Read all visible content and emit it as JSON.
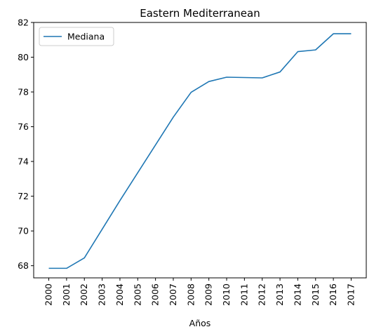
{
  "chart_data": {
    "type": "line",
    "title": "Eastern Mediterranean",
    "xlabel": "Años",
    "ylabel": "",
    "x": [
      "2000",
      "2001",
      "2002",
      "2003",
      "2004",
      "2005",
      "2006",
      "2007",
      "2008",
      "2009",
      "2010",
      "2011",
      "2012",
      "2013",
      "2014",
      "2015",
      "2016",
      "2017"
    ],
    "series": [
      {
        "name": "Mediana",
        "color": "#1f77b4",
        "values": [
          67.85,
          67.85,
          68.45,
          70.1,
          71.75,
          73.35,
          74.95,
          76.55,
          77.98,
          78.6,
          78.85,
          78.83,
          78.81,
          79.15,
          80.32,
          80.42,
          81.35,
          81.35
        ]
      }
    ],
    "ylim": [
      67.3,
      82.0
    ],
    "yticks": [
      68,
      70,
      72,
      74,
      76,
      78,
      80,
      82
    ],
    "grid": false,
    "legend_position": "top-left"
  }
}
